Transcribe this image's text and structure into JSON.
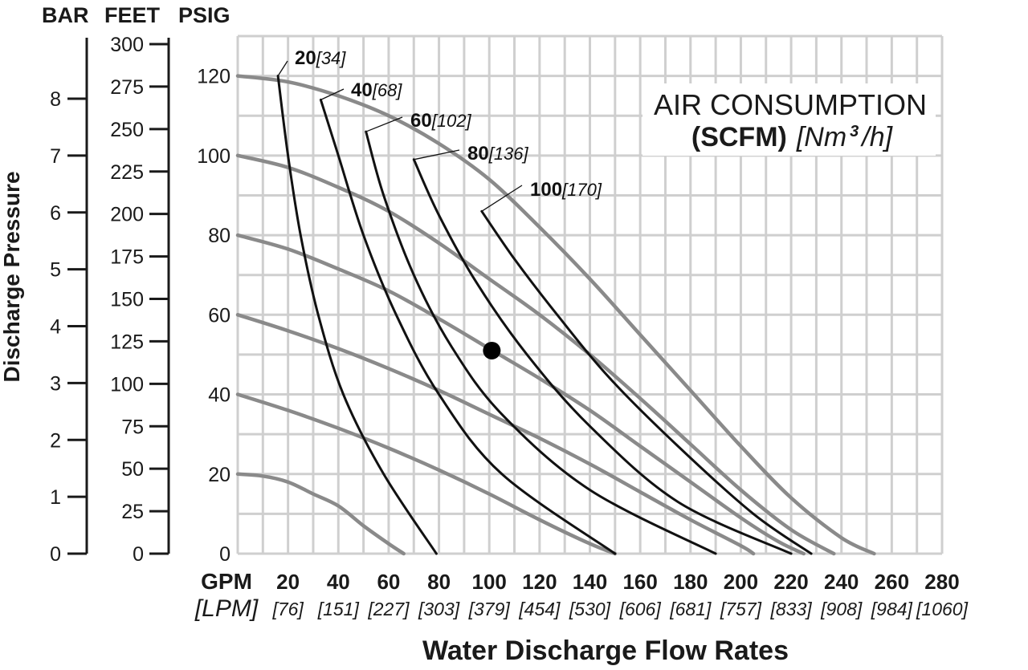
{
  "chart_data": {
    "type": "line",
    "axis_units": {
      "bar": "BAR",
      "feet": "FEET",
      "psig": "PSIG",
      "gpm": "GPM",
      "lpm": "[LPM]"
    },
    "y_title": "Discharge Pressure",
    "x_title": "Water Discharge Flow Rates",
    "legend": {
      "title": "AIR CONSUMPTION",
      "sub_bold": "(SCFM)",
      "sub_italic_pre": "[Nm",
      "sub_sup": "3",
      "sub_italic_post": "/h]"
    },
    "x_range_gpm": [
      0,
      280
    ],
    "y_range_psig": [
      0,
      130
    ],
    "grid": true,
    "x_ticks": [
      {
        "gpm": 20,
        "label": "20",
        "lpm": "[76]"
      },
      {
        "gpm": 40,
        "label": "40",
        "lpm": "[151]"
      },
      {
        "gpm": 60,
        "label": "60",
        "lpm": "[227]"
      },
      {
        "gpm": 80,
        "label": "80",
        "lpm": "[303]"
      },
      {
        "gpm": 100,
        "label": "100",
        "lpm": "[379]"
      },
      {
        "gpm": 120,
        "label": "120",
        "lpm": "[454]"
      },
      {
        "gpm": 140,
        "label": "140",
        "lpm": "[530]"
      },
      {
        "gpm": 160,
        "label": "160",
        "lpm": "[606]"
      },
      {
        "gpm": 180,
        "label": "180",
        "lpm": "[681]"
      },
      {
        "gpm": 200,
        "label": "200",
        "lpm": "[757]"
      },
      {
        "gpm": 220,
        "label": "220",
        "lpm": "[833]"
      },
      {
        "gpm": 240,
        "label": "240",
        "lpm": "[908]"
      },
      {
        "gpm": 260,
        "label": "260",
        "lpm": "[984]"
      },
      {
        "gpm": 280,
        "label": "280",
        "lpm": "[1060]"
      }
    ],
    "psig_ticks": [
      {
        "value": 0,
        "label": "0"
      },
      {
        "value": 20,
        "label": "20"
      },
      {
        "value": 40,
        "label": "40"
      },
      {
        "value": 60,
        "label": "60"
      },
      {
        "value": 80,
        "label": "80"
      },
      {
        "value": 100,
        "label": "100"
      },
      {
        "value": 120,
        "label": "120"
      }
    ],
    "feet_ticks": [
      {
        "value": 0,
        "label": "0"
      },
      {
        "value": 25,
        "label": "25"
      },
      {
        "value": 50,
        "label": "50"
      },
      {
        "value": 75,
        "label": "75"
      },
      {
        "value": 100,
        "label": "100"
      },
      {
        "value": 125,
        "label": "125"
      },
      {
        "value": 150,
        "label": "150"
      },
      {
        "value": 175,
        "label": "175"
      },
      {
        "value": 200,
        "label": "200"
      },
      {
        "value": 225,
        "label": "225"
      },
      {
        "value": 250,
        "label": "250"
      },
      {
        "value": 275,
        "label": "275"
      },
      {
        "value": 300,
        "label": "300"
      }
    ],
    "bar_ticks": [
      {
        "value": 0,
        "label": "0"
      },
      {
        "value": 1,
        "label": "1"
      },
      {
        "value": 2,
        "label": "2"
      },
      {
        "value": 3,
        "label": "3"
      },
      {
        "value": 4,
        "label": "4"
      },
      {
        "value": 5,
        "label": "5"
      },
      {
        "value": 6,
        "label": "6"
      },
      {
        "value": 7,
        "label": "7"
      },
      {
        "value": 8,
        "label": "8"
      }
    ],
    "pressure_curves": [
      {
        "points": [
          [
            0,
            120
          ],
          [
            20,
            118.5
          ],
          [
            40,
            115
          ],
          [
            60,
            110
          ],
          [
            80,
            103
          ],
          [
            100,
            94
          ],
          [
            120,
            82
          ],
          [
            140,
            69
          ],
          [
            160,
            55
          ],
          [
            180,
            41
          ],
          [
            200,
            27
          ],
          [
            220,
            14
          ],
          [
            240,
            4
          ],
          [
            253,
            0
          ]
        ]
      },
      {
        "points": [
          [
            0,
            100
          ],
          [
            20,
            97
          ],
          [
            40,
            92
          ],
          [
            60,
            86
          ],
          [
            80,
            78
          ],
          [
            100,
            69
          ],
          [
            120,
            60
          ],
          [
            140,
            50
          ],
          [
            160,
            39
          ],
          [
            180,
            27.5
          ],
          [
            200,
            16
          ],
          [
            220,
            6
          ],
          [
            237,
            0
          ]
        ]
      },
      {
        "points": [
          [
            0,
            80
          ],
          [
            20,
            76.5
          ],
          [
            40,
            71.5
          ],
          [
            60,
            66
          ],
          [
            80,
            59
          ],
          [
            100,
            51.5
          ],
          [
            120,
            44
          ],
          [
            140,
            36
          ],
          [
            160,
            27
          ],
          [
            180,
            18
          ],
          [
            200,
            9
          ],
          [
            215,
            3
          ],
          [
            225,
            0
          ]
        ]
      },
      {
        "points": [
          [
            0,
            60
          ],
          [
            20,
            56
          ],
          [
            40,
            51.5
          ],
          [
            60,
            46.5
          ],
          [
            80,
            41
          ],
          [
            100,
            35
          ],
          [
            120,
            29
          ],
          [
            140,
            22.5
          ],
          [
            160,
            15.5
          ],
          [
            180,
            8.5
          ],
          [
            200,
            2
          ],
          [
            205,
            0
          ]
        ]
      },
      {
        "points": [
          [
            0,
            40
          ],
          [
            20,
            36
          ],
          [
            40,
            31.5
          ],
          [
            60,
            26.5
          ],
          [
            80,
            21
          ],
          [
            100,
            15
          ],
          [
            120,
            8.5
          ],
          [
            140,
            2.5
          ],
          [
            150,
            0
          ]
        ]
      },
      {
        "points": [
          [
            0,
            20
          ],
          [
            10,
            19.5
          ],
          [
            20,
            18
          ],
          [
            30,
            15
          ],
          [
            40,
            12
          ],
          [
            50,
            7
          ],
          [
            60,
            2.5
          ],
          [
            66,
            0
          ]
        ]
      }
    ],
    "air_curves": [
      {
        "scfm": "20",
        "nm3h": "[34]",
        "points": [
          [
            16,
            120
          ],
          [
            20,
            100
          ],
          [
            25,
            80
          ],
          [
            32,
            60
          ],
          [
            42,
            40
          ],
          [
            58,
            20
          ],
          [
            79,
            0
          ]
        ]
      },
      {
        "scfm": "40",
        "nm3h": "[68]",
        "points": [
          [
            33,
            114
          ],
          [
            40,
            100
          ],
          [
            50,
            80
          ],
          [
            63,
            60
          ],
          [
            80,
            40
          ],
          [
            105,
            20
          ],
          [
            150,
            0
          ]
        ]
      },
      {
        "scfm": "60",
        "nm3h": "[102]",
        "points": [
          [
            51,
            106
          ],
          [
            58,
            90
          ],
          [
            70,
            70
          ],
          [
            85,
            52
          ],
          [
            105,
            35
          ],
          [
            140,
            16
          ],
          [
            190,
            0
          ]
        ]
      },
      {
        "scfm": "80",
        "nm3h": "[136]",
        "points": [
          [
            70,
            99
          ],
          [
            80,
            85
          ],
          [
            95,
            68
          ],
          [
            115,
            50
          ],
          [
            140,
            32
          ],
          [
            175,
            13
          ],
          [
            220,
            0
          ]
        ]
      },
      {
        "scfm": "100",
        "nm3h": "[170]",
        "points": [
          [
            97,
            86
          ],
          [
            110,
            74
          ],
          [
            127,
            60
          ],
          [
            148,
            44
          ],
          [
            175,
            27
          ],
          [
            205,
            10
          ],
          [
            228,
            0
          ]
        ]
      }
    ],
    "operating_point": {
      "gpm": 101,
      "psig": 51
    }
  }
}
